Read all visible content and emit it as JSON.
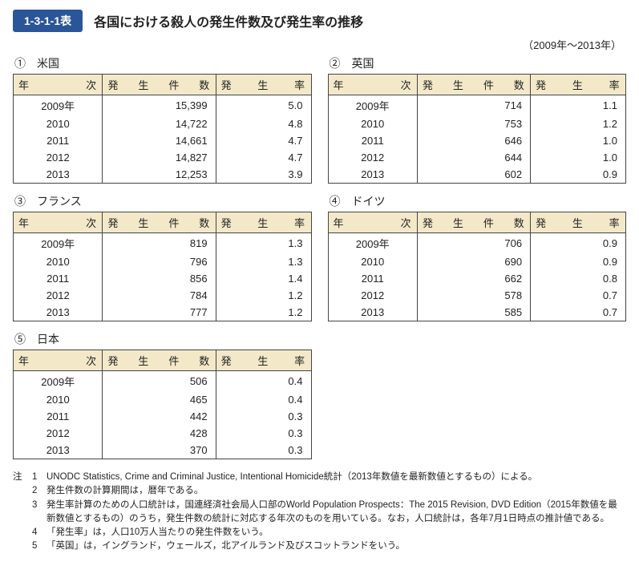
{
  "header": {
    "badge": "1-3-1-1表",
    "title": "各国における殺人の発生件数及び発生率の推移",
    "period": "（2009年～2013年）"
  },
  "column_headers": {
    "year": "年　次",
    "count": "発 生 件 数",
    "rate": "発　生　率"
  },
  "countries": [
    {
      "marker": "①",
      "name": "米国",
      "rows": [
        {
          "year": "2009年",
          "count": "15,399",
          "rate": "5.0"
        },
        {
          "year": "2010",
          "count": "14,722",
          "rate": "4.8"
        },
        {
          "year": "2011",
          "count": "14,661",
          "rate": "4.7"
        },
        {
          "year": "2012",
          "count": "14,827",
          "rate": "4.7"
        },
        {
          "year": "2013",
          "count": "12,253",
          "rate": "3.9"
        }
      ]
    },
    {
      "marker": "②",
      "name": "英国",
      "rows": [
        {
          "year": "2009年",
          "count": "714",
          "rate": "1.1"
        },
        {
          "year": "2010",
          "count": "753",
          "rate": "1.2"
        },
        {
          "year": "2011",
          "count": "646",
          "rate": "1.0"
        },
        {
          "year": "2012",
          "count": "644",
          "rate": "1.0"
        },
        {
          "year": "2013",
          "count": "602",
          "rate": "0.9"
        }
      ]
    },
    {
      "marker": "③",
      "name": "フランス",
      "rows": [
        {
          "year": "2009年",
          "count": "819",
          "rate": "1.3"
        },
        {
          "year": "2010",
          "count": "796",
          "rate": "1.3"
        },
        {
          "year": "2011",
          "count": "856",
          "rate": "1.4"
        },
        {
          "year": "2012",
          "count": "784",
          "rate": "1.2"
        },
        {
          "year": "2013",
          "count": "777",
          "rate": "1.2"
        }
      ]
    },
    {
      "marker": "④",
      "name": "ドイツ",
      "rows": [
        {
          "year": "2009年",
          "count": "706",
          "rate": "0.9"
        },
        {
          "year": "2010",
          "count": "690",
          "rate": "0.9"
        },
        {
          "year": "2011",
          "count": "662",
          "rate": "0.8"
        },
        {
          "year": "2012",
          "count": "578",
          "rate": "0.7"
        },
        {
          "year": "2013",
          "count": "585",
          "rate": "0.7"
        }
      ]
    },
    {
      "marker": "⑤",
      "name": "日本",
      "rows": [
        {
          "year": "2009年",
          "count": "506",
          "rate": "0.4"
        },
        {
          "year": "2010",
          "count": "465",
          "rate": "0.4"
        },
        {
          "year": "2011",
          "count": "442",
          "rate": "0.3"
        },
        {
          "year": "2012",
          "count": "428",
          "rate": "0.3"
        },
        {
          "year": "2013",
          "count": "370",
          "rate": "0.3"
        }
      ]
    }
  ],
  "notes": {
    "prefix": "注",
    "items": [
      {
        "num": "1",
        "text": "UNODC Statistics, Crime and Criminal Justice, Intentional Homicide統計（2013年数値を最新数値とするもの）による。"
      },
      {
        "num": "2",
        "text": "発生件数の計算期間は，暦年である。"
      },
      {
        "num": "3",
        "text": "発生率計算のための人口統計は，国連経済社会局人口部のWorld Population Prospects：The 2015 Revision, DVD Edition（2015年数値を最新数値とするもの）のうち，発生件数の統計に対応する年次のものを用いている。なお，人口統計は，各年7月1日時点の推計値である。"
      },
      {
        "num": "4",
        "text": "「発生率」は，人口10万人当たりの発生件数をいう。"
      },
      {
        "num": "5",
        "text": "「英国」は，イングランド，ウェールズ，北アイルランド及びスコットランドをいう。"
      }
    ]
  },
  "style": {
    "badge_bg": "#2a5599",
    "badge_fg": "#ffffff",
    "header_row_bg": "#f3e9c9",
    "border_color": "#444444",
    "body_bg": "#ffffff"
  }
}
